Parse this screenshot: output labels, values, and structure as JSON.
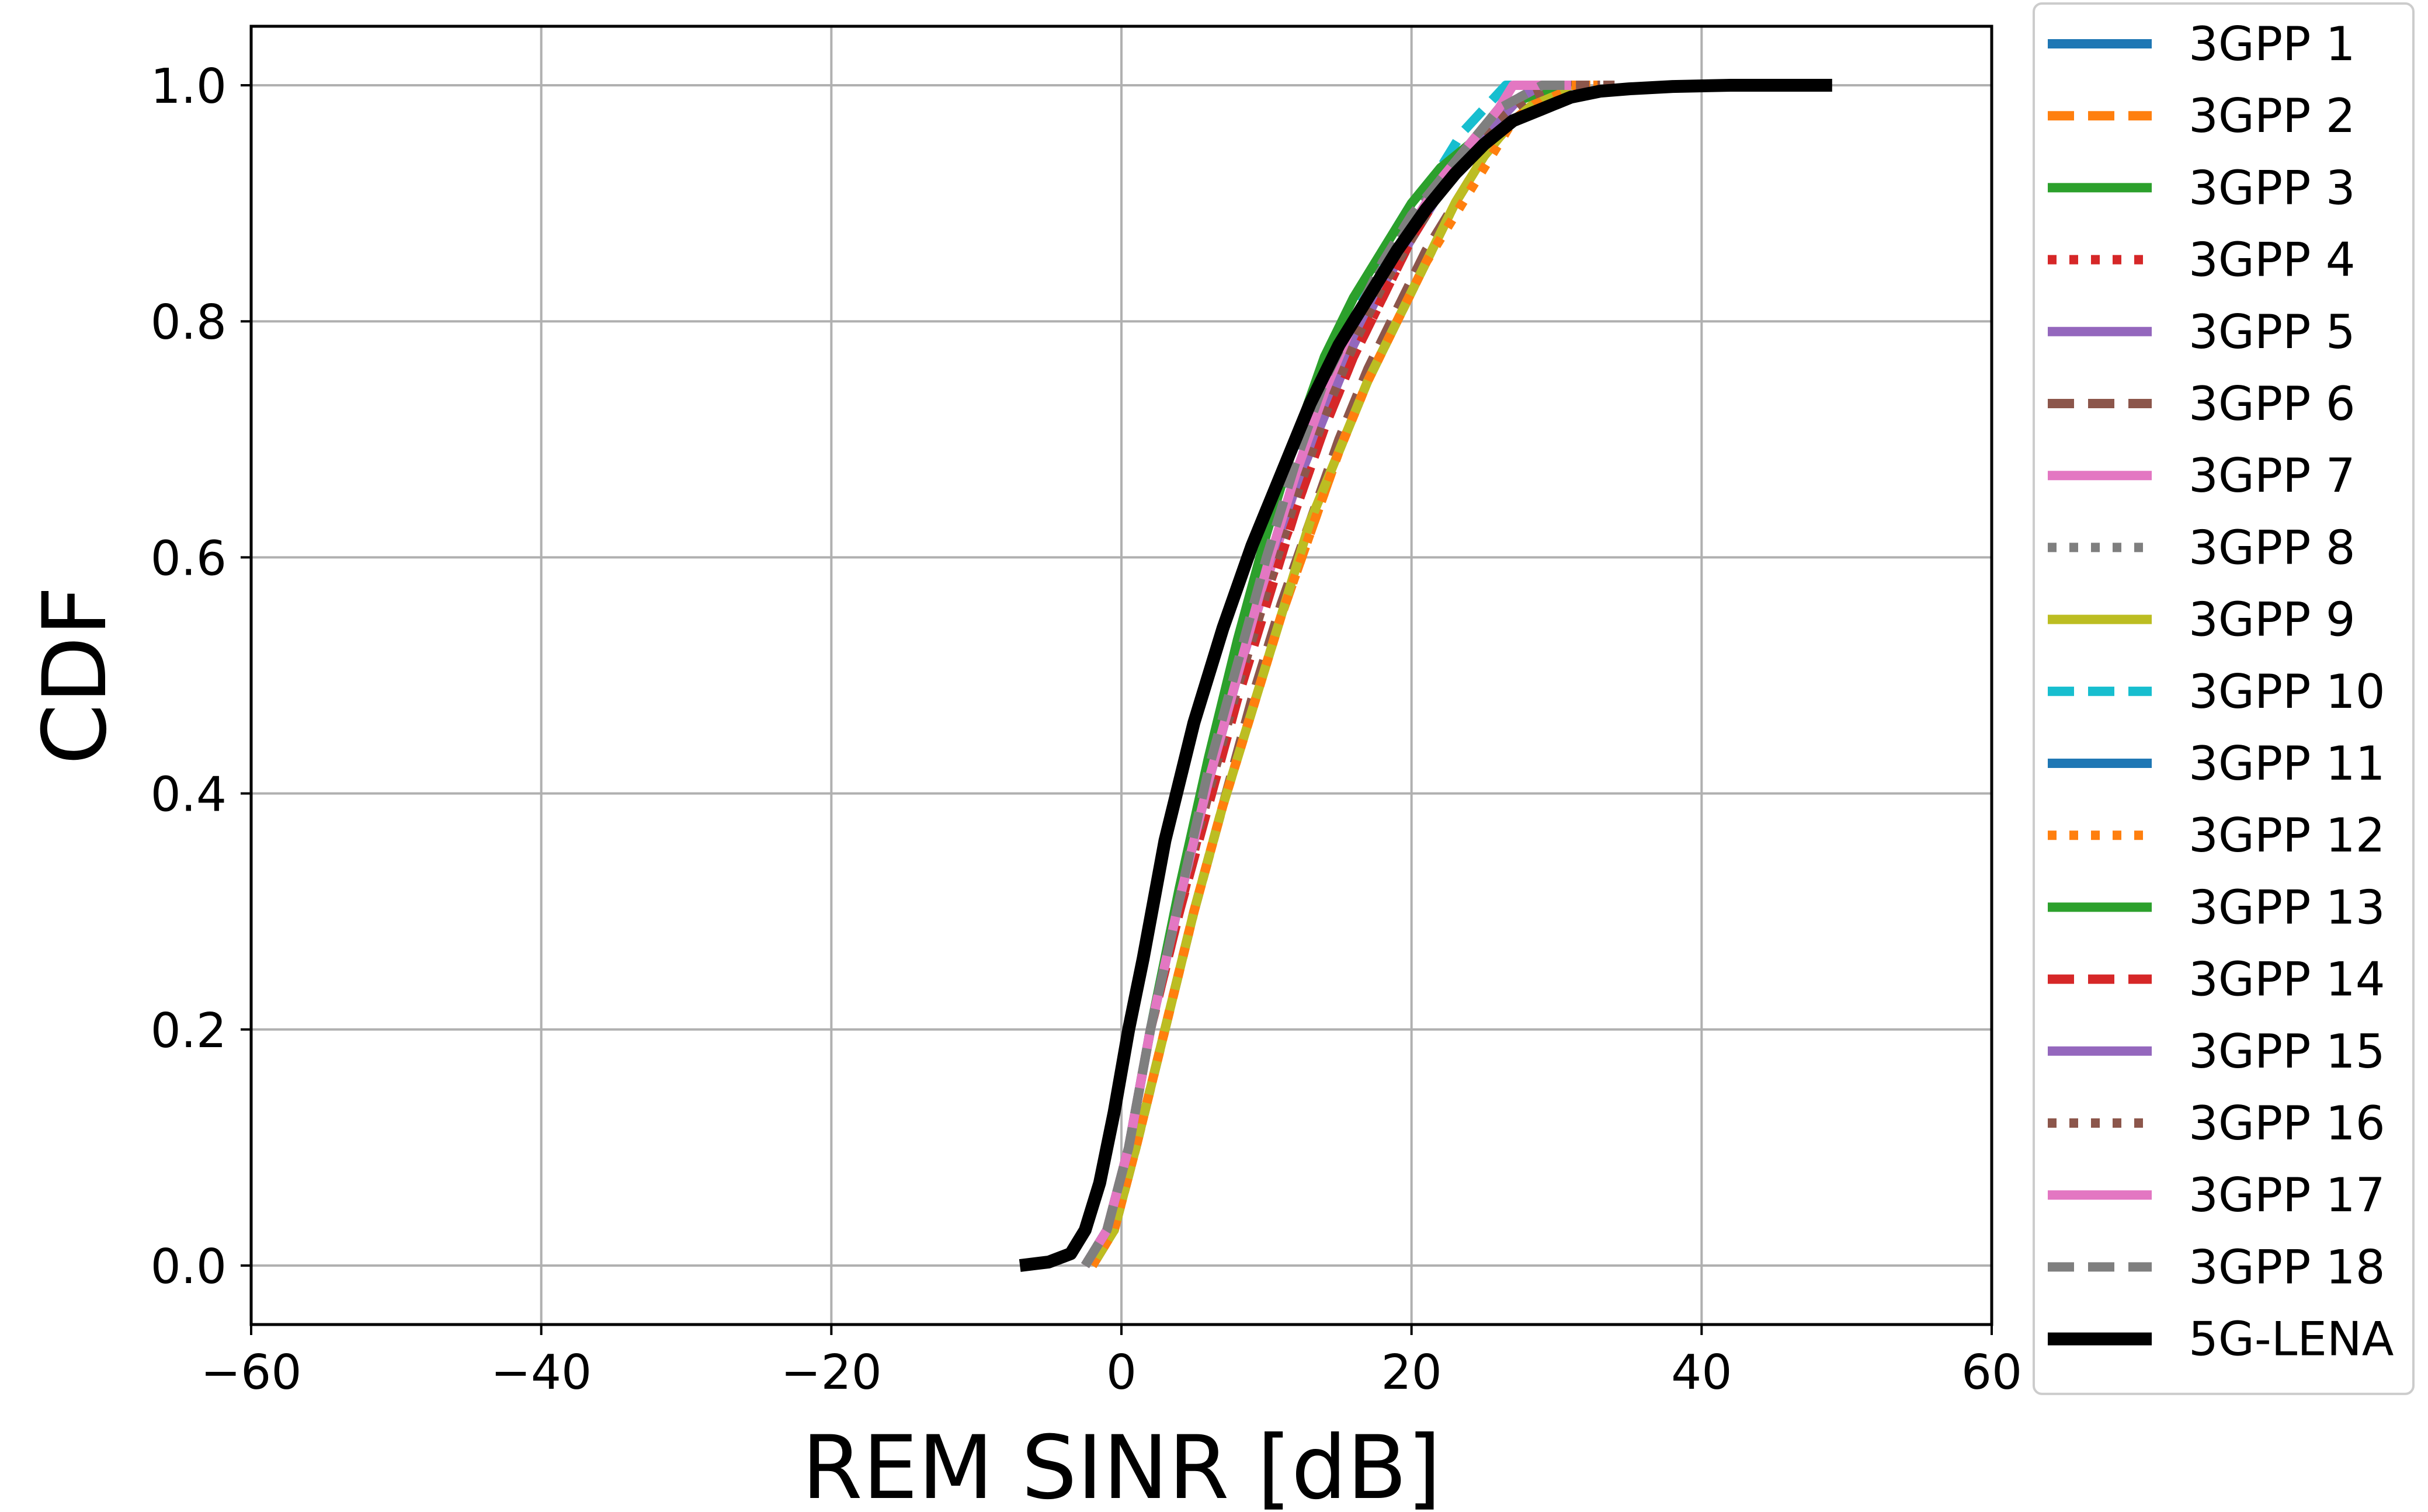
{
  "chart_data": {
    "type": "line",
    "title": "",
    "xlabel": "REM SINR [dB]",
    "ylabel": "CDF",
    "xlim": [
      -60,
      60
    ],
    "ylim": [
      -0.05,
      1.05
    ],
    "xticks": [
      -60,
      -40,
      -20,
      0,
      20,
      40,
      60
    ],
    "xtick_labels": [
      "−60",
      "−40",
      "−20",
      "0",
      "20",
      "40",
      "60"
    ],
    "yticks": [
      0.0,
      0.2,
      0.4,
      0.6,
      0.8,
      1.0
    ],
    "ytick_labels": [
      "0.0",
      "0.2",
      "0.4",
      "0.6",
      "0.8",
      "1.0"
    ],
    "grid": true,
    "legend_position": "right",
    "series": [
      {
        "name": "3GPP 1",
        "color": "#1f77b4",
        "dash": "solid",
        "x": [
          -2.5,
          -1,
          0.5,
          2,
          4,
          6,
          8,
          10,
          12,
          14,
          16,
          18,
          20,
          22,
          24,
          26,
          27.5,
          29,
          31
        ],
        "y": [
          0,
          0.03,
          0.1,
          0.2,
          0.31,
          0.41,
          0.5,
          0.58,
          0.66,
          0.72,
          0.78,
          0.83,
          0.87,
          0.91,
          0.94,
          0.97,
          0.99,
          1,
          1
        ]
      },
      {
        "name": "3GPP 2",
        "color": "#ff7f0e",
        "dash": "dashed",
        "x": [
          -2,
          -0.5,
          1,
          3,
          5,
          7,
          9,
          11,
          13,
          15,
          17,
          19,
          21,
          23,
          25,
          27,
          29,
          31,
          33
        ],
        "y": [
          0,
          0.03,
          0.1,
          0.2,
          0.3,
          0.39,
          0.47,
          0.55,
          0.62,
          0.69,
          0.75,
          0.8,
          0.85,
          0.9,
          0.94,
          0.97,
          0.99,
          1,
          1
        ]
      },
      {
        "name": "3GPP 3",
        "color": "#2ca02c",
        "dash": "solid",
        "x": [
          -2.5,
          -1,
          0.5,
          2,
          4,
          6,
          8,
          10,
          12,
          14,
          16,
          18,
          20,
          22,
          24,
          26,
          28,
          30,
          31
        ],
        "y": [
          0,
          0.03,
          0.1,
          0.2,
          0.32,
          0.43,
          0.53,
          0.62,
          0.7,
          0.77,
          0.82,
          0.86,
          0.9,
          0.93,
          0.95,
          0.98,
          0.99,
          1,
          1
        ]
      },
      {
        "name": "3GPP 4",
        "color": "#d62728",
        "dash": "dotted",
        "x": [
          -2.5,
          -1,
          0.5,
          2,
          4,
          6,
          8,
          10,
          12,
          14,
          16,
          18,
          20,
          22,
          24,
          26,
          27.5,
          29,
          31
        ],
        "y": [
          0,
          0.03,
          0.1,
          0.2,
          0.3,
          0.4,
          0.49,
          0.57,
          0.64,
          0.71,
          0.77,
          0.82,
          0.87,
          0.91,
          0.94,
          0.97,
          0.99,
          1,
          1
        ]
      },
      {
        "name": "3GPP 5",
        "color": "#9467bd",
        "dash": "solid",
        "x": [
          -2.5,
          -1,
          0.5,
          2,
          4,
          6,
          8,
          10,
          12,
          14,
          16,
          18,
          20,
          22,
          24,
          26,
          27.5,
          29,
          31
        ],
        "y": [
          0,
          0.03,
          0.1,
          0.2,
          0.31,
          0.41,
          0.5,
          0.58,
          0.66,
          0.72,
          0.78,
          0.83,
          0.87,
          0.91,
          0.94,
          0.97,
          0.99,
          1,
          1
        ]
      },
      {
        "name": "3GPP 6",
        "color": "#8c564b",
        "dash": "dashed",
        "x": [
          -2,
          -0.5,
          1,
          3,
          5,
          7,
          9,
          11,
          13,
          15,
          17,
          19,
          21,
          23,
          25,
          27,
          29,
          31,
          34
        ],
        "y": [
          0,
          0.03,
          0.1,
          0.2,
          0.3,
          0.39,
          0.48,
          0.56,
          0.63,
          0.7,
          0.76,
          0.81,
          0.86,
          0.9,
          0.94,
          0.97,
          0.99,
          1,
          1
        ]
      },
      {
        "name": "3GPP 7",
        "color": "#e377c2",
        "dash": "solid",
        "x": [
          -2.5,
          -1,
          0.5,
          2,
          4,
          6,
          8,
          10,
          12,
          14,
          16,
          18,
          20,
          22,
          24,
          26,
          27.5,
          29,
          31
        ],
        "y": [
          0,
          0.03,
          0.1,
          0.2,
          0.31,
          0.41,
          0.5,
          0.58,
          0.66,
          0.73,
          0.79,
          0.84,
          0.88,
          0.92,
          0.95,
          0.98,
          0.99,
          1,
          1
        ]
      },
      {
        "name": "3GPP 8",
        "color": "#7f7f7f",
        "dash": "dotted",
        "x": [
          -2.5,
          -1,
          0.5,
          2,
          4,
          6,
          8,
          10,
          12,
          14,
          16,
          18,
          20,
          22,
          24,
          26,
          27.5,
          29,
          31
        ],
        "y": [
          0,
          0.03,
          0.1,
          0.2,
          0.31,
          0.41,
          0.5,
          0.59,
          0.67,
          0.74,
          0.8,
          0.85,
          0.89,
          0.92,
          0.95,
          0.98,
          0.99,
          1,
          1
        ]
      },
      {
        "name": "3GPP 9",
        "color": "#bcbd22",
        "dash": "solid",
        "x": [
          -2,
          -0.5,
          1,
          3,
          5,
          7,
          9,
          11,
          13,
          15,
          17,
          19,
          21,
          23,
          25,
          27,
          29,
          31
        ],
        "y": [
          0,
          0.03,
          0.1,
          0.2,
          0.3,
          0.39,
          0.47,
          0.55,
          0.63,
          0.69,
          0.75,
          0.8,
          0.85,
          0.9,
          0.94,
          0.97,
          0.99,
          1
        ]
      },
      {
        "name": "3GPP 10",
        "color": "#17becf",
        "dash": "dashed",
        "x": [
          -2.5,
          -1,
          0.5,
          2,
          4,
          6,
          8,
          10,
          12,
          14,
          16,
          18,
          20,
          22,
          23.5,
          25,
          26.5,
          28,
          30
        ],
        "y": [
          0,
          0.03,
          0.1,
          0.2,
          0.32,
          0.42,
          0.52,
          0.61,
          0.69,
          0.76,
          0.81,
          0.86,
          0.9,
          0.93,
          0.96,
          0.98,
          1,
          1,
          1
        ]
      },
      {
        "name": "3GPP 11",
        "color": "#1f77b4",
        "dash": "solid",
        "x": [
          -2.5,
          -1,
          0.5,
          2,
          4,
          6,
          8,
          10,
          12,
          14,
          16,
          18,
          20,
          22,
          24,
          26,
          27.5,
          29,
          31
        ],
        "y": [
          0,
          0.03,
          0.1,
          0.2,
          0.31,
          0.41,
          0.5,
          0.59,
          0.66,
          0.73,
          0.79,
          0.84,
          0.88,
          0.92,
          0.95,
          0.97,
          0.99,
          1,
          1
        ]
      },
      {
        "name": "3GPP 12",
        "color": "#ff7f0e",
        "dash": "dotted",
        "x": [
          -2,
          -0.5,
          1,
          3,
          5,
          7,
          9,
          11,
          13,
          15,
          17,
          19,
          21,
          23,
          25,
          27,
          29,
          31,
          33
        ],
        "y": [
          0,
          0.03,
          0.1,
          0.2,
          0.3,
          0.39,
          0.47,
          0.55,
          0.62,
          0.69,
          0.75,
          0.8,
          0.85,
          0.89,
          0.93,
          0.97,
          0.99,
          1,
          1
        ]
      },
      {
        "name": "3GPP 13",
        "color": "#2ca02c",
        "dash": "solid",
        "x": [
          -2.5,
          -1,
          0.5,
          2,
          4,
          6,
          8,
          10,
          12,
          14,
          16,
          18,
          20,
          22,
          24,
          26,
          28,
          30,
          31
        ],
        "y": [
          0,
          0.03,
          0.1,
          0.2,
          0.32,
          0.43,
          0.53,
          0.62,
          0.7,
          0.77,
          0.82,
          0.86,
          0.9,
          0.93,
          0.95,
          0.98,
          0.99,
          1,
          1
        ]
      },
      {
        "name": "3GPP 14",
        "color": "#d62728",
        "dash": "dashed",
        "x": [
          -2.5,
          -1,
          0.5,
          2,
          4,
          6,
          8,
          10,
          12,
          14,
          16,
          18,
          20,
          22,
          24,
          26,
          27.5,
          29,
          31
        ],
        "y": [
          0,
          0.03,
          0.1,
          0.2,
          0.3,
          0.39,
          0.48,
          0.56,
          0.64,
          0.71,
          0.77,
          0.82,
          0.87,
          0.91,
          0.94,
          0.97,
          0.99,
          1,
          1
        ]
      },
      {
        "name": "3GPP 15",
        "color": "#9467bd",
        "dash": "solid",
        "x": [
          -2.5,
          -1,
          0.5,
          2,
          4,
          6,
          8,
          10,
          12,
          14,
          16,
          18,
          20,
          22,
          24,
          26,
          27.5,
          29,
          31
        ],
        "y": [
          0,
          0.03,
          0.1,
          0.2,
          0.31,
          0.41,
          0.5,
          0.59,
          0.66,
          0.73,
          0.79,
          0.84,
          0.88,
          0.92,
          0.95,
          0.97,
          0.99,
          1,
          1
        ]
      },
      {
        "name": "3GPP 16",
        "color": "#8c564b",
        "dash": "dotted",
        "x": [
          -2.5,
          -1,
          0.5,
          2,
          4,
          6,
          8,
          10,
          12,
          14,
          16,
          18,
          20,
          22,
          24,
          26,
          28,
          30,
          33
        ],
        "y": [
          0,
          0.03,
          0.1,
          0.2,
          0.31,
          0.4,
          0.49,
          0.57,
          0.65,
          0.72,
          0.78,
          0.83,
          0.87,
          0.91,
          0.94,
          0.97,
          0.99,
          1,
          1
        ]
      },
      {
        "name": "3GPP 17",
        "color": "#e377c2",
        "dash": "solid",
        "x": [
          -2.5,
          -1,
          0.5,
          2,
          4,
          6,
          8,
          10,
          12,
          14,
          16,
          18,
          20,
          22,
          24,
          26,
          27,
          29,
          31
        ],
        "y": [
          0,
          0.03,
          0.1,
          0.2,
          0.31,
          0.41,
          0.5,
          0.59,
          0.67,
          0.74,
          0.8,
          0.84,
          0.88,
          0.92,
          0.95,
          0.98,
          1,
          1,
          1
        ]
      },
      {
        "name": "3GPP 18",
        "color": "#7f7f7f",
        "dash": "dashed",
        "x": [
          -2.5,
          -1,
          0.5,
          2,
          4,
          6,
          8,
          10,
          12,
          14,
          16,
          18,
          20,
          22,
          24,
          26,
          27.5,
          29,
          31
        ],
        "y": [
          0,
          0.03,
          0.1,
          0.2,
          0.31,
          0.42,
          0.51,
          0.6,
          0.68,
          0.75,
          0.8,
          0.85,
          0.89,
          0.92,
          0.95,
          0.98,
          0.99,
          1,
          1
        ]
      },
      {
        "name": "5G-LENA",
        "color": "#000000",
        "dash": "solid",
        "x": [
          -7,
          -5,
          -3.5,
          -2.5,
          -1.5,
          -0.5,
          0.5,
          1.5,
          3,
          5,
          7,
          9,
          11,
          13,
          15,
          17,
          19,
          21,
          23,
          25,
          27,
          29,
          31,
          33,
          35,
          38,
          42,
          46,
          49
        ],
        "y": [
          0,
          0.003,
          0.01,
          0.03,
          0.07,
          0.13,
          0.2,
          0.26,
          0.36,
          0.46,
          0.54,
          0.61,
          0.67,
          0.73,
          0.78,
          0.82,
          0.86,
          0.895,
          0.925,
          0.95,
          0.97,
          0.98,
          0.99,
          0.995,
          0.997,
          0.999,
          1,
          1,
          1
        ]
      }
    ]
  }
}
